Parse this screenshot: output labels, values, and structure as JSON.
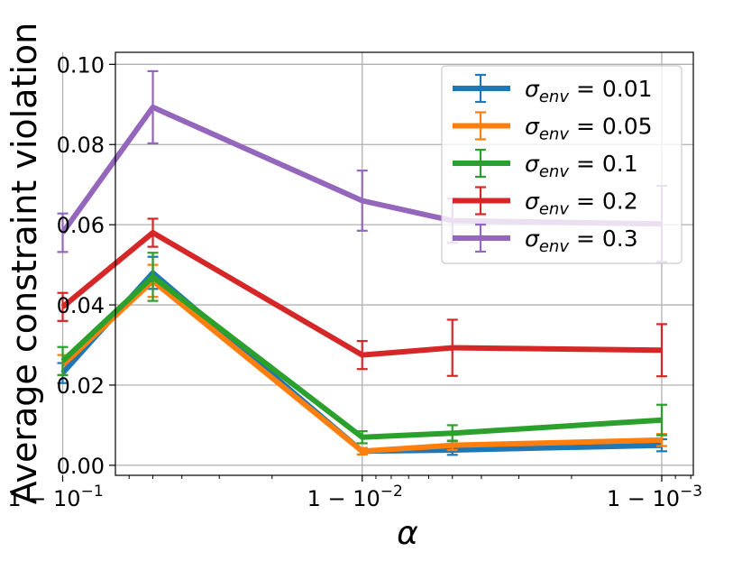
{
  "chart_data": {
    "type": "line",
    "title": "",
    "xlabel": "α",
    "ylabel": "Average constraint violation",
    "x_scale": "log(1-α)",
    "x": [
      0.95,
      0.9,
      0.99,
      0.995,
      0.999
    ],
    "xticks": [
      {
        "value": 0.9,
        "base": "1 − 10",
        "exp": "−1"
      },
      {
        "value": 0.99,
        "base": "1 − 10",
        "exp": "−2"
      },
      {
        "value": 0.999,
        "base": "1 − 10",
        "exp": "−3"
      }
    ],
    "ylim": [
      -0.0025,
      0.103
    ],
    "yticks": [
      "0.00",
      "0.02",
      "0.04",
      "0.06",
      "0.08",
      "0.10"
    ],
    "ytick_values": [
      0,
      0.02,
      0.04,
      0.06,
      0.08,
      0.1
    ],
    "grid": true,
    "legend_position": "top-right",
    "series": [
      {
        "name": "σenv = 0.01",
        "sub": "env",
        "val": " = 0.01",
        "color": "#1f77b4",
        "values": [
          0.048,
          0.023,
          0.0035,
          0.0038,
          0.005
        ],
        "errors": [
          0.004,
          0.0025,
          0.0008,
          0.0012,
          0.0015
        ]
      },
      {
        "name": "σenv = 0.05",
        "sub": "env",
        "val": " = 0.05",
        "color": "#ff7f0e",
        "values": [
          0.046,
          0.025,
          0.0035,
          0.005,
          0.0063
        ],
        "errors": [
          0.004,
          0.0025,
          0.0008,
          0.0012,
          0.0015
        ]
      },
      {
        "name": "σenv = 0.1",
        "sub": "env",
        "val": " = 0.1",
        "color": "#2ca02c",
        "values": [
          0.047,
          0.026,
          0.007,
          0.008,
          0.0113
        ],
        "errors": [
          0.006,
          0.0035,
          0.0015,
          0.002,
          0.0038
        ]
      },
      {
        "name": "σenv = 0.2",
        "sub": "env",
        "val": " = 0.2",
        "color": "#d62728",
        "values": [
          0.058,
          0.0395,
          0.0275,
          0.0293,
          0.0287
        ],
        "errors": [
          0.0035,
          0.0035,
          0.0035,
          0.007,
          0.0065
        ]
      },
      {
        "name": "σenv = 0.3",
        "sub": "env",
        "val": " = 0.3",
        "color": "#9467bd",
        "values": [
          0.0893,
          0.058,
          0.066,
          0.061,
          0.0602
        ],
        "errors": [
          0.009,
          0.0048,
          0.0075,
          0.0055,
          0.0095
        ]
      }
    ]
  }
}
